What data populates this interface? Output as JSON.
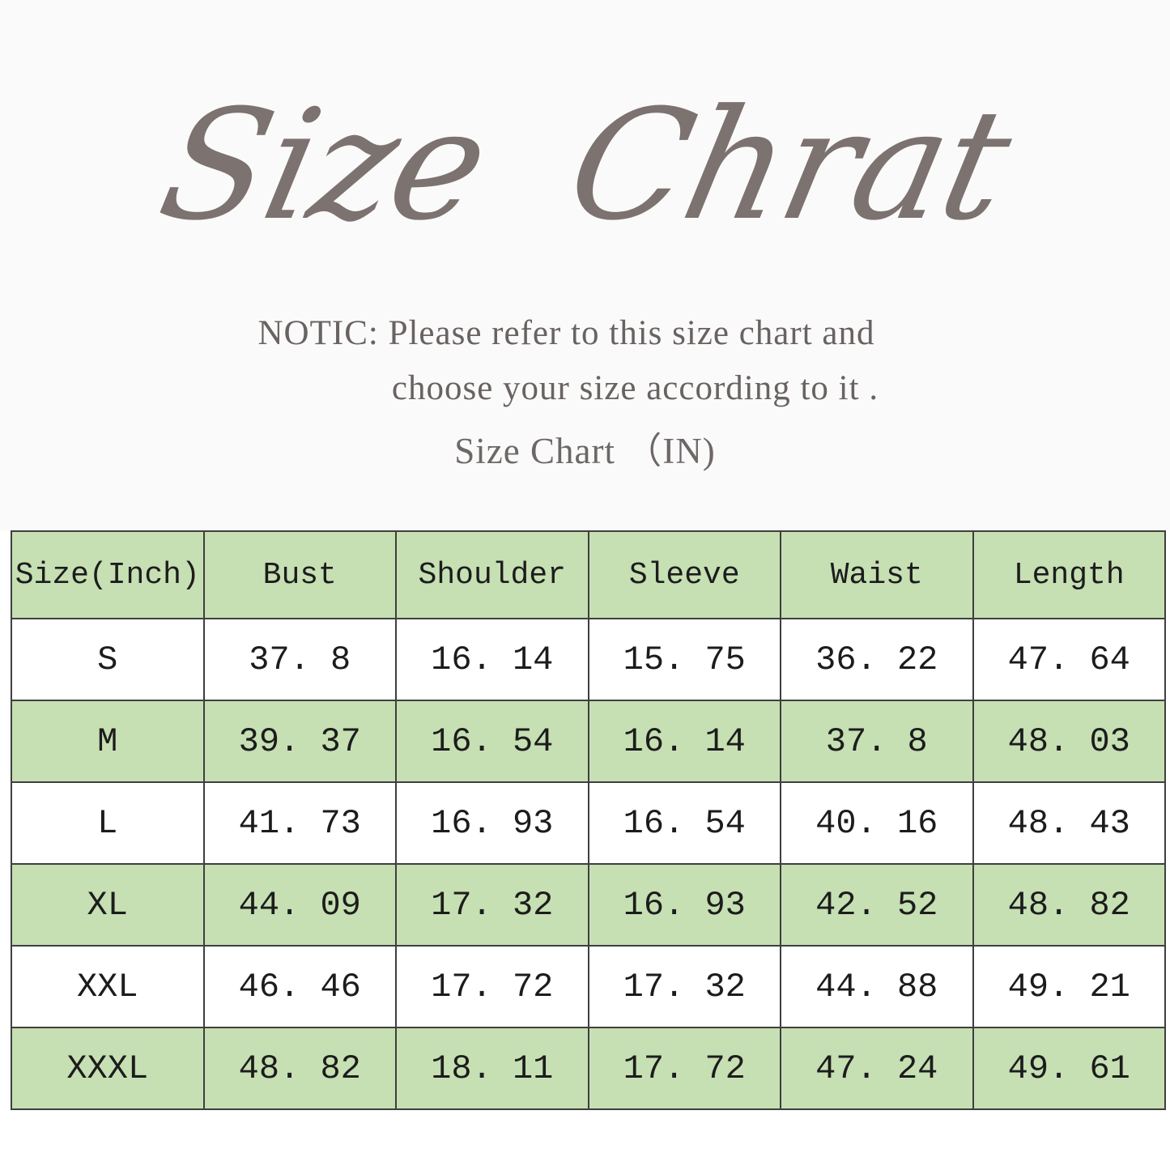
{
  "header": {
    "title": "Size Chrat",
    "notice_line1": "NOTIC: Please refer to this size chart and",
    "notice_line2": "choose your size according to it .",
    "subtitle": "Size Chart （IN)"
  },
  "chart_data": {
    "type": "table",
    "title": "Size Chart (IN)",
    "unit": "IN",
    "columns": [
      "Size(Inch)",
      "Bust",
      "Shoulder",
      "Sleeve",
      "Waist",
      "Length"
    ],
    "rows": [
      {
        "cells": [
          "S",
          "37. 8",
          "16. 14",
          "15. 75",
          "36. 22",
          "47. 64"
        ]
      },
      {
        "cells": [
          "M",
          "39. 37",
          "16. 54",
          "16. 14",
          "37. 8",
          "48. 03"
        ]
      },
      {
        "cells": [
          "L",
          "41. 73",
          "16. 93",
          "16. 54",
          "40. 16",
          "48. 43"
        ]
      },
      {
        "cells": [
          "XL",
          "44. 09",
          "17. 32",
          "16. 93",
          "42. 52",
          "48. 82"
        ]
      },
      {
        "cells": [
          "XXL",
          "46. 46",
          "17. 72",
          "17. 32",
          "44. 88",
          "49. 21"
        ]
      },
      {
        "cells": [
          "XXXL",
          "48. 82",
          "18. 11",
          "17. 72",
          "47. 24",
          "49. 61"
        ]
      }
    ],
    "layout": {
      "header_fill": "#c6dfb3",
      "alternate_row_fill": "#c6dfb3",
      "plain_row_fill": "#ffffff",
      "border_color": "#3f3f3f"
    }
  },
  "colors": {
    "title_color": "#7c7270",
    "notice_color": "#686361",
    "table_text_color": "#1c1c1c",
    "accent_green": "#c6dfb3",
    "border": "#3f3f3f"
  }
}
